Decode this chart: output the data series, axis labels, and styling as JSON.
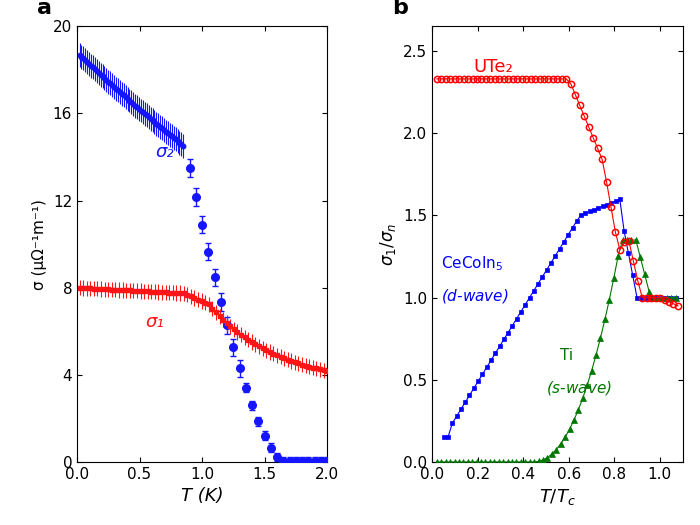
{
  "panel_a": {
    "title": "a",
    "xlabel": "T (K)",
    "ylabel": "σ (μΩ⁻¹m⁻¹)",
    "xlim": [
      0,
      2.0
    ],
    "ylim": [
      0,
      20
    ],
    "xticks": [
      0.0,
      0.5,
      1.0,
      1.5,
      2.0
    ],
    "yticks": [
      0,
      4,
      8,
      12,
      16,
      20
    ],
    "sigma2_label": "σ₂",
    "sigma1_label": "σ₁",
    "blue_color": "#1515ff",
    "red_color": "#ff1515"
  },
  "panel_b": {
    "title": "b",
    "xlabel": "T/T_c",
    "ylabel": "σ₁/σₙ",
    "xlim": [
      0,
      1.1
    ],
    "ylim": [
      0.0,
      2.65
    ],
    "xticks": [
      0.0,
      0.2,
      0.4,
      0.6,
      0.8,
      1.0
    ],
    "yticks": [
      0.0,
      0.5,
      1.0,
      1.5,
      2.0,
      2.5
    ],
    "ute2_label": "UTe₂",
    "cecoin5_label": "CeCoIn₅\n( d-wave)",
    "ti_label": "Ti\n( s-wave)",
    "red_color": "#ff0000",
    "blue_color": "#0000ff",
    "green_color": "#007700"
  }
}
